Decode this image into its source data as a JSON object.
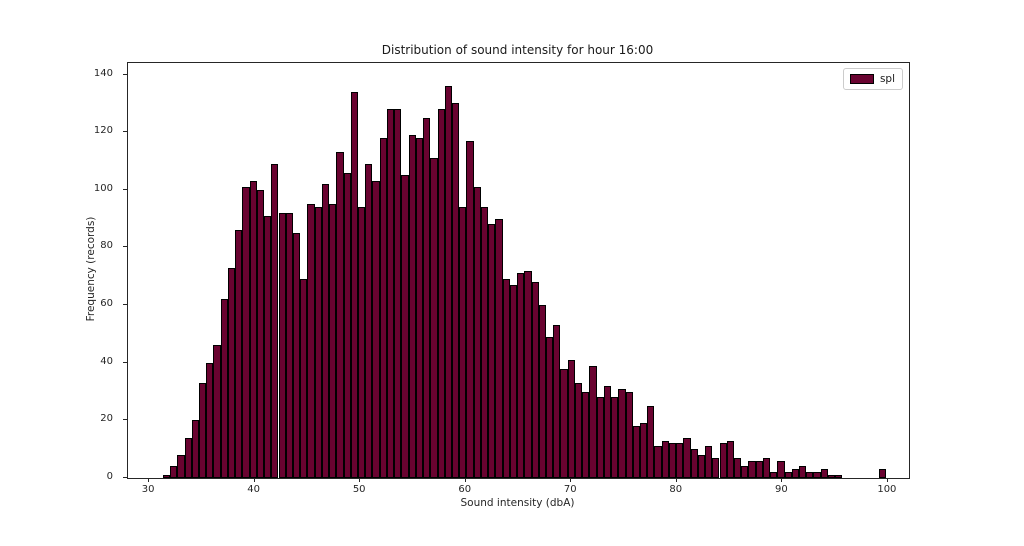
{
  "figure": {
    "background": "#ffffff"
  },
  "chart_data": {
    "type": "bar",
    "subtype": "histogram",
    "title": "Distribution of sound intensity for hour 16:00",
    "xlabel": "Sound intensity (dbA)",
    "ylabel": "Frequency (records)",
    "legend": {
      "label": "spl",
      "position": "upper right"
    },
    "bar_color": "#690330",
    "bar_edge_color": "#000000",
    "grid": false,
    "bin_start": 31.3,
    "bin_width": 0.685,
    "values": [
      1,
      4,
      8,
      14,
      20,
      33,
      40,
      46,
      62,
      73,
      86,
      101,
      103,
      100,
      91,
      109,
      92,
      92,
      85,
      69,
      95,
      94,
      102,
      95,
      113,
      106,
      134,
      94,
      109,
      103,
      118,
      128,
      128,
      105,
      119,
      118,
      125,
      111,
      128,
      136,
      130,
      94,
      117,
      101,
      94,
      88,
      90,
      69,
      67,
      71,
      72,
      68,
      60,
      49,
      53,
      38,
      41,
      33,
      30,
      39,
      28,
      32,
      28,
      31,
      30,
      18,
      19,
      25,
      11,
      13,
      12,
      12,
      14,
      10,
      8,
      11,
      7,
      12,
      13,
      7,
      4,
      6,
      6,
      7,
      2,
      6,
      2,
      3,
      4,
      2,
      2,
      3,
      1,
      1,
      0,
      0,
      0,
      0,
      0,
      3
    ],
    "xlim": [
      28,
      102
    ],
    "ylim": [
      0,
      144
    ],
    "xticks": [
      30,
      40,
      50,
      60,
      70,
      80,
      90,
      100
    ],
    "yticks": [
      0,
      20,
      40,
      60,
      80,
      100,
      120,
      140
    ]
  }
}
